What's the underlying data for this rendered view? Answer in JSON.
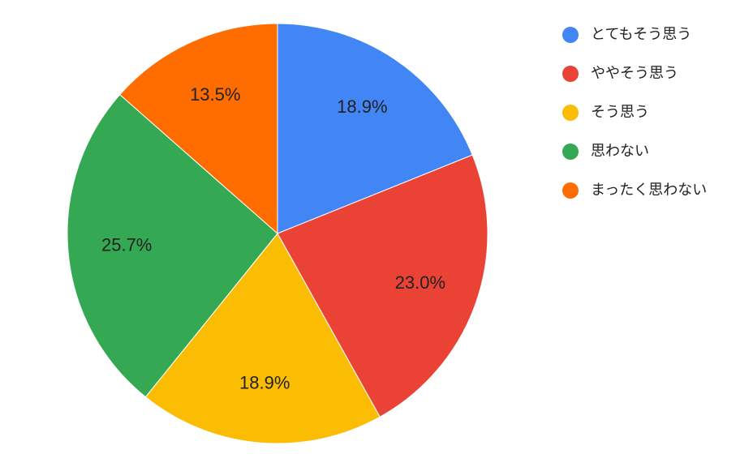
{
  "chart_data": {
    "type": "pie",
    "categories": [
      "とてもそう思う",
      "ややそう思う",
      "そう思う",
      "思わない",
      "まったく思わない"
    ],
    "values": [
      18.9,
      23.0,
      18.9,
      25.7,
      13.5
    ],
    "value_labels": [
      "18.9%",
      "23.0%",
      "18.9%",
      "25.7%",
      "13.5%"
    ],
    "colors": [
      "#4285f4",
      "#ea4335",
      "#fbbc04",
      "#34a853",
      "#ff6d01"
    ],
    "legend": "right"
  }
}
